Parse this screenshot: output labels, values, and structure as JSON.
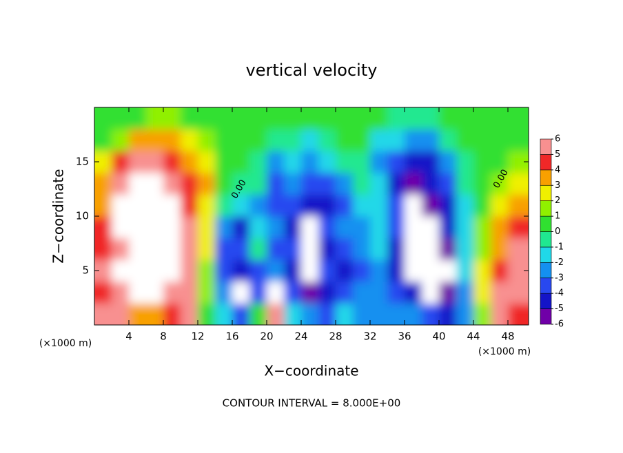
{
  "chart_data": {
    "type": "contour",
    "title": "vertical velocity",
    "x_label": "X−coordinate",
    "y_label": "Z−coordinate",
    "x_unit_labels": [
      "(×1000 m)",
      "(×1000 m)"
    ],
    "footer": "CONTOUR INTERVAL = 8.000E+00",
    "contour_labels": [
      "0.00",
      "0.00"
    ],
    "x": [
      1,
      3,
      5,
      7,
      9,
      11,
      13,
      15,
      17,
      19,
      21,
      23,
      25,
      27,
      29,
      31,
      33,
      35,
      37,
      39,
      41,
      43,
      45,
      47,
      49
    ],
    "y": [
      1,
      3,
      5,
      7,
      9,
      11,
      13,
      15,
      17,
      19
    ],
    "z": [
      [
        5,
        5,
        3,
        3,
        4,
        5,
        0,
        -2,
        -4,
        0,
        5,
        -2,
        -3,
        -4,
        -2,
        -3,
        -3,
        -3,
        -3,
        -4,
        -5,
        -3,
        1,
        5,
        4
      ],
      [
        4,
        5,
        7,
        7,
        5,
        5,
        1,
        -3,
        -6.5,
        -4,
        7,
        -4,
        -6,
        -5,
        -4,
        -3,
        -3,
        -4,
        -5,
        -7,
        -6,
        -3,
        2,
        5,
        5
      ],
      [
        5,
        7,
        7,
        7,
        7,
        5,
        1,
        -4,
        -5,
        -4,
        -3,
        -5,
        -6.5,
        -4,
        -5,
        -4,
        -3,
        -5,
        -7,
        -7,
        -7,
        -2,
        2,
        4,
        5
      ],
      [
        4,
        5,
        7,
        7,
        7,
        5,
        2,
        -4,
        -4,
        -1,
        -4,
        -4,
        -7,
        -5,
        -4,
        -3,
        -2,
        -5,
        -7,
        -7,
        -6,
        -2,
        1,
        3,
        6
      ],
      [
        4,
        7,
        7,
        7,
        7,
        5,
        2,
        -3,
        -5,
        -2,
        -3,
        -5,
        -7,
        -4,
        -3,
        -3,
        -2,
        -4,
        -7,
        -7,
        -5,
        -2,
        1,
        3,
        4
      ],
      [
        3,
        7,
        7,
        7,
        7,
        4.5,
        2,
        -1,
        -2,
        -3,
        -4,
        -4,
        -5,
        -5,
        -4,
        -2,
        -2,
        -4,
        -7,
        -6,
        -5,
        -2,
        0,
        2,
        3
      ],
      [
        3,
        5,
        7,
        7,
        5,
        4,
        3,
        0,
        -1,
        -1,
        -4,
        -3,
        -4,
        -4,
        -3,
        -1,
        -2,
        -5,
        -6,
        -5,
        -4,
        -1,
        0,
        1,
        2
      ],
      [
        2,
        4,
        5,
        5,
        4,
        3.5,
        2,
        0,
        0,
        -1,
        -3,
        -2,
        -3,
        -2,
        -1,
        -1,
        -3,
        -4,
        -5,
        -5,
        -3,
        -1,
        0,
        0,
        1
      ],
      [
        0.5,
        1.5,
        3,
        3.5,
        3,
        2,
        1,
        0,
        0,
        0,
        -1,
        -1,
        -2,
        -1,
        0,
        0,
        -2,
        -2,
        -3,
        -3,
        -1,
        0,
        0,
        0,
        0
      ],
      [
        0,
        0,
        0.5,
        1,
        1,
        0.5,
        0,
        0,
        0,
        0,
        0,
        0,
        0,
        0,
        0,
        0,
        0,
        -1,
        -1,
        -1,
        0,
        0,
        0,
        0,
        0
      ]
    ],
    "xlim": [
      0,
      50.4
    ],
    "ylim": [
      0,
      20
    ],
    "xticks": [
      4,
      8,
      12,
      16,
      20,
      24,
      28,
      32,
      36,
      40,
      44,
      48
    ],
    "yticks": [
      5,
      10,
      15
    ],
    "clim": [
      -6,
      6
    ],
    "cticks": [
      -6,
      -5,
      -4,
      -3,
      -2,
      -1,
      0,
      1,
      2,
      3,
      4,
      5,
      6
    ],
    "colors": [
      "#7000a8",
      "#1414c8",
      "#2848f0",
      "#1490f0",
      "#20d8e8",
      "#20e890",
      "#30e030",
      "#90f000",
      "#f0f000",
      "#f8a000",
      "#f02828",
      "#f89090"
    ],
    "out_of_range_color": "#ffffff"
  }
}
